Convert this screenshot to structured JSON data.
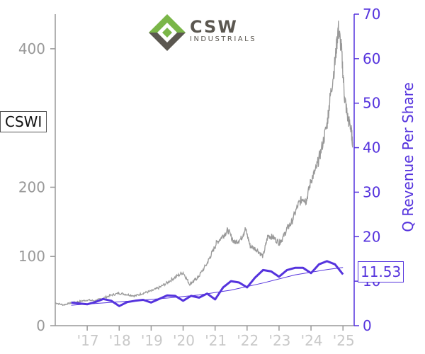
{
  "logo": {
    "name": "CSW",
    "sub": "INDUSTRIALS",
    "colors": {
      "green": "#7ab648",
      "brown": "#5b5750"
    }
  },
  "ticker": "CSWI",
  "last_value_label": "11.53",
  "colors": {
    "price": "#999999",
    "revenue": "#5533dd",
    "revenue_label": "#5533dd",
    "x_ticks": "#c8c8c8"
  },
  "chart_data": {
    "type": "line",
    "title": "",
    "x_ticks": [
      "'17",
      "'18",
      "'19",
      "'20",
      "'21",
      "'22",
      "'23",
      "'24",
      "'25"
    ],
    "x_tick_years": [
      2017,
      2018,
      2019,
      2020,
      2021,
      2022,
      2023,
      2024,
      2025
    ],
    "xlim": [
      2016.0,
      2025.35
    ],
    "y_left": {
      "label": "",
      "ticks": [
        0,
        100,
        200,
        400
      ],
      "lim": [
        0,
        450
      ]
    },
    "y_right": {
      "label": "Q Revenue Per Share",
      "ticks": [
        0,
        10,
        20,
        30,
        40,
        50,
        60,
        70
      ],
      "lim": [
        0,
        70
      ]
    },
    "series": [
      {
        "key": "price",
        "axis": "left",
        "points": [
          [
            2016.0,
            33
          ],
          [
            2016.25,
            30
          ],
          [
            2016.5,
            33
          ],
          [
            2016.75,
            35
          ],
          [
            2017.0,
            37
          ],
          [
            2017.25,
            36
          ],
          [
            2017.5,
            40
          ],
          [
            2017.75,
            44
          ],
          [
            2018.0,
            47
          ],
          [
            2018.25,
            45
          ],
          [
            2018.5,
            43
          ],
          [
            2018.75,
            47
          ],
          [
            2019.0,
            50
          ],
          [
            2019.25,
            55
          ],
          [
            2019.5,
            62
          ],
          [
            2019.75,
            70
          ],
          [
            2020.0,
            77
          ],
          [
            2020.2,
            60
          ],
          [
            2020.35,
            65
          ],
          [
            2020.5,
            72
          ],
          [
            2020.75,
            90
          ],
          [
            2020.9,
            105
          ],
          [
            2021.05,
            120
          ],
          [
            2021.25,
            130
          ],
          [
            2021.4,
            138
          ],
          [
            2021.6,
            120
          ],
          [
            2021.8,
            125
          ],
          [
            2021.95,
            140
          ],
          [
            2022.1,
            115
          ],
          [
            2022.3,
            110
          ],
          [
            2022.5,
            100
          ],
          [
            2022.65,
            130
          ],
          [
            2022.8,
            128
          ],
          [
            2023.0,
            120
          ],
          [
            2023.1,
            125
          ],
          [
            2023.25,
            140
          ],
          [
            2023.4,
            150
          ],
          [
            2023.6,
            175
          ],
          [
            2023.75,
            185
          ],
          [
            2023.85,
            180
          ],
          [
            2024.0,
            210
          ],
          [
            2024.15,
            225
          ],
          [
            2024.3,
            250
          ],
          [
            2024.5,
            290
          ],
          [
            2024.6,
            330
          ],
          [
            2024.75,
            380
          ],
          [
            2024.85,
            430
          ],
          [
            2024.95,
            400
          ],
          [
            2025.05,
            330
          ],
          [
            2025.15,
            300
          ],
          [
            2025.25,
            285
          ],
          [
            2025.3,
            265
          ]
        ]
      },
      {
        "key": "revenue",
        "axis": "right",
        "points": [
          [
            2016.5,
            5.2
          ],
          [
            2016.75,
            5.0
          ],
          [
            2017.0,
            4.8
          ],
          [
            2017.25,
            5.3
          ],
          [
            2017.5,
            6.0
          ],
          [
            2017.75,
            5.6
          ],
          [
            2018.0,
            4.4
          ],
          [
            2018.25,
            5.3
          ],
          [
            2018.5,
            5.6
          ],
          [
            2018.75,
            5.8
          ],
          [
            2019.0,
            5.2
          ],
          [
            2019.25,
            6.0
          ],
          [
            2019.5,
            6.8
          ],
          [
            2019.75,
            6.7
          ],
          [
            2020.0,
            5.6
          ],
          [
            2020.25,
            6.7
          ],
          [
            2020.5,
            6.3
          ],
          [
            2020.75,
            7.2
          ],
          [
            2021.0,
            5.9
          ],
          [
            2021.25,
            8.6
          ],
          [
            2021.5,
            10.0
          ],
          [
            2021.75,
            9.7
          ],
          [
            2022.0,
            8.6
          ],
          [
            2022.25,
            10.8
          ],
          [
            2022.5,
            12.5
          ],
          [
            2022.75,
            12.2
          ],
          [
            2023.0,
            11.0
          ],
          [
            2023.25,
            12.5
          ],
          [
            2023.5,
            13.0
          ],
          [
            2023.75,
            13.0
          ],
          [
            2024.0,
            11.8
          ],
          [
            2024.25,
            13.8
          ],
          [
            2024.5,
            14.5
          ],
          [
            2024.75,
            13.8
          ],
          [
            2025.0,
            11.53
          ]
        ]
      },
      {
        "key": "revenue_trend",
        "axis": "right",
        "points": [
          [
            2016.5,
            4.6
          ],
          [
            2017.5,
            5.1
          ],
          [
            2018.5,
            5.6
          ],
          [
            2019.5,
            6.2
          ],
          [
            2020.5,
            6.9
          ],
          [
            2021.5,
            8.0
          ],
          [
            2022.5,
            9.6
          ],
          [
            2023.5,
            11.4
          ],
          [
            2024.5,
            12.6
          ],
          [
            2025.0,
            13.1
          ]
        ]
      }
    ]
  }
}
